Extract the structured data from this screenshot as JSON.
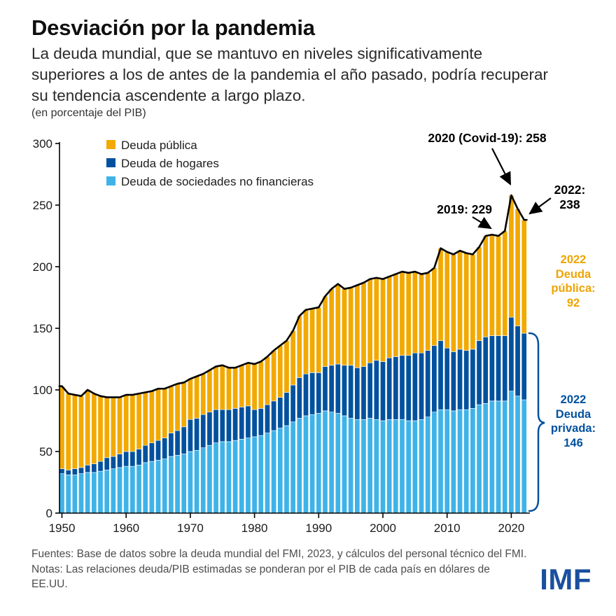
{
  "header": {
    "title": "Desviación por la pandemia",
    "subtitle": "La deuda mundial, que se mantuvo en niveles significativamente superiores a los de antes de la pandemia el año pasado, podría recuperar su tendencia ascendente a largo plazo.",
    "unit_label": "(en porcentaje del PIB)"
  },
  "legend": [
    {
      "label": "Deuda pública",
      "color": "#F2A900"
    },
    {
      "label": "Deuda de hogares",
      "color": "#01519E"
    },
    {
      "label": "Deuda de sociedades no financieras",
      "color": "#3FB3E8"
    }
  ],
  "annotations": {
    "covid": "2020 (Covid-19): 258",
    "y2019": "2019: 229",
    "y2022_line1": "2022:",
    "y2022_line2": "238",
    "public_2022": [
      "2022",
      "Deuda",
      "pública:",
      "92"
    ],
    "private_2022": [
      "2022",
      "Deuda",
      "privada:",
      "146"
    ]
  },
  "footer": {
    "source": "Fuentes: Base de datos sobre la deuda mundial del FMI, 2023, y cálculos del personal técnico del FMI.",
    "notes": "Notas: Las relaciones deuda/PIB estimadas se ponderan por el PIB de cada país en dólares de EE.UU.",
    "logo": "IMF"
  },
  "colors": {
    "public": "#F2A900",
    "household": "#01519E",
    "corporate": "#3FB3E8",
    "total_line": "#000000",
    "axis": "#000000",
    "brace": "#01519E",
    "public_label_text": "#EFA400",
    "private_label_text": "#01519E",
    "logo_blue": "#1A4F9F",
    "footer_text": "#4D4D4D"
  },
  "chart_data": {
    "type": "bar",
    "stacked": true,
    "title": "Desviación por la pandemia",
    "ylabel": "(en porcentaje del PIB)",
    "ylim": [
      0,
      300
    ],
    "yticks": [
      0,
      50,
      100,
      150,
      200,
      250,
      300
    ],
    "xticks": [
      1950,
      1960,
      1970,
      1980,
      1990,
      2000,
      2010,
      2020
    ],
    "grid": false,
    "legend_position": "top-left",
    "x": [
      1950,
      1951,
      1952,
      1953,
      1954,
      1955,
      1956,
      1957,
      1958,
      1959,
      1960,
      1961,
      1962,
      1963,
      1964,
      1965,
      1966,
      1967,
      1968,
      1969,
      1970,
      1971,
      1972,
      1973,
      1974,
      1975,
      1976,
      1977,
      1978,
      1979,
      1980,
      1981,
      1982,
      1983,
      1984,
      1985,
      1986,
      1987,
      1988,
      1989,
      1990,
      1991,
      1992,
      1993,
      1994,
      1995,
      1996,
      1997,
      1998,
      1999,
      2000,
      2001,
      2002,
      2003,
      2004,
      2005,
      2006,
      2007,
      2008,
      2009,
      2010,
      2011,
      2012,
      2013,
      2014,
      2015,
      2016,
      2017,
      2018,
      2019,
      2020,
      2021,
      2022
    ],
    "series": [
      {
        "name": "Deuda de sociedades no financieras",
        "color": "#3FB3E8",
        "values": [
          32,
          31,
          31,
          32,
          33,
          33,
          34,
          35,
          36,
          37,
          38,
          38,
          39,
          41,
          42,
          43,
          44,
          46,
          47,
          48,
          50,
          51,
          53,
          55,
          57,
          58,
          58,
          59,
          60,
          61,
          62,
          63,
          65,
          67,
          69,
          71,
          74,
          77,
          79,
          80,
          81,
          83,
          82,
          81,
          79,
          77,
          76,
          76,
          77,
          76,
          75,
          76,
          76,
          76,
          75,
          75,
          76,
          78,
          82,
          84,
          84,
          83,
          84,
          84,
          85,
          88,
          89,
          91,
          91,
          91,
          99,
          95,
          92
        ]
      },
      {
        "name": "Deuda de hogares",
        "color": "#01519E",
        "values": [
          4,
          4,
          5,
          5,
          6,
          7,
          8,
          10,
          10,
          11,
          12,
          12,
          13,
          14,
          15,
          16,
          17,
          19,
          20,
          22,
          26,
          26,
          27,
          27,
          27,
          26,
          26,
          26,
          26,
          26,
          22,
          22,
          23,
          24,
          25,
          27,
          30,
          33,
          34,
          34,
          33,
          36,
          38,
          40,
          41,
          43,
          42,
          43,
          45,
          48,
          48,
          50,
          51,
          52,
          53,
          55,
          54,
          54,
          54,
          56,
          50,
          48,
          49,
          48,
          48,
          52,
          54,
          53,
          53,
          53,
          60,
          57,
          54
        ]
      },
      {
        "name": "Deuda pública",
        "color": "#F2A900",
        "values": [
          67,
          62,
          60,
          58,
          61,
          57,
          53,
          49,
          48,
          46,
          46,
          46,
          45,
          43,
          42,
          42,
          40,
          38,
          38,
          36,
          33,
          34,
          33,
          34,
          35,
          36,
          34,
          33,
          34,
          35,
          37,
          38,
          39,
          41,
          42,
          42,
          44,
          50,
          52,
          52,
          53,
          57,
          62,
          65,
          62,
          63,
          67,
          68,
          68,
          67,
          67,
          66,
          67,
          68,
          67,
          66,
          64,
          63,
          63,
          75,
          78,
          79,
          80,
          79,
          77,
          76,
          82,
          82,
          81,
          85,
          99,
          95,
          92
        ]
      }
    ],
    "total_line_note": "black line traces the sum of the three stacked series",
    "key_totals": {
      "2019": 229,
      "2020": 258,
      "2022": 238
    },
    "key_2022_breakdown": {
      "public": 92,
      "private": 146
    }
  }
}
